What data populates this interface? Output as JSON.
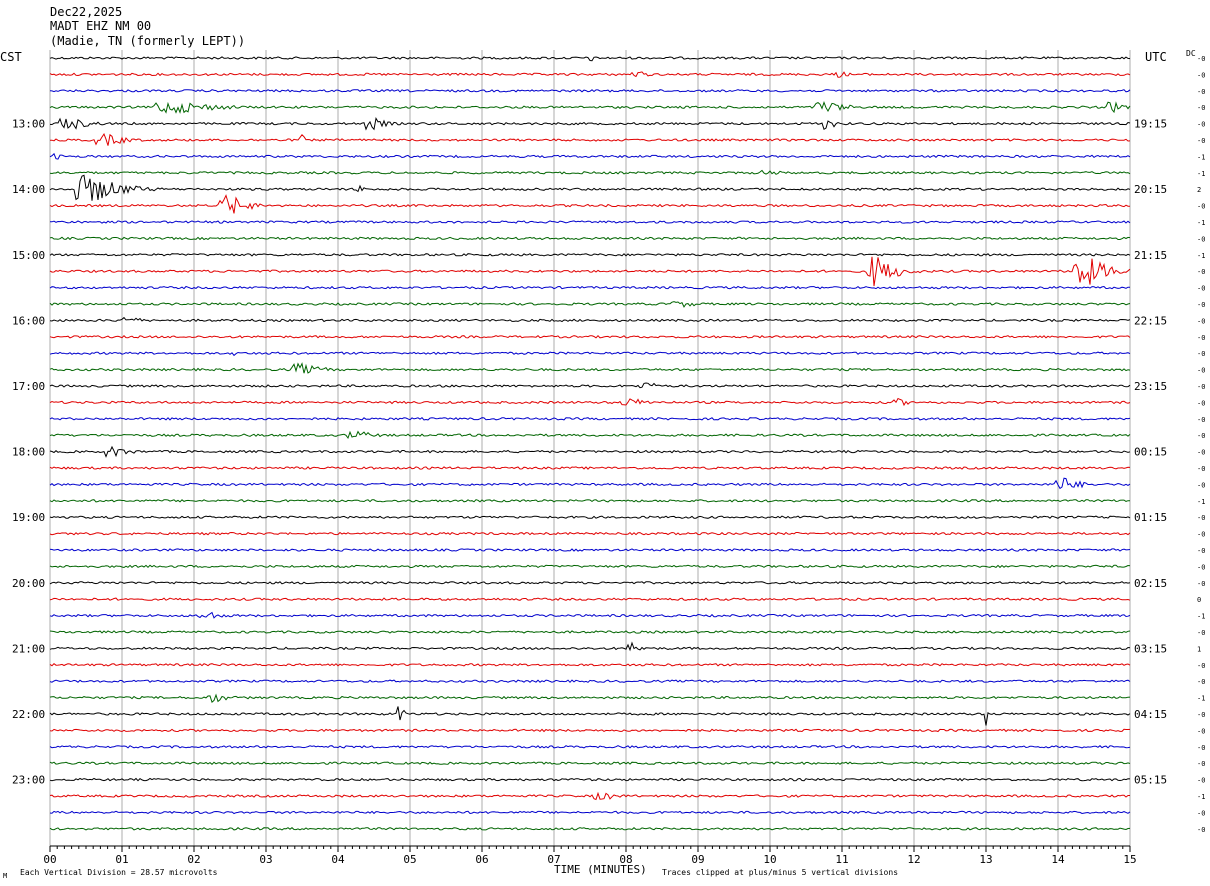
{
  "header": {
    "date": "Dec22,2025",
    "station": "MADT EHZ NM 00",
    "location": "(Madie, TN (formerly LEPT))"
  },
  "left_axis_label": "CST",
  "right_axis_label": "UTC",
  "dc_label": "DC",
  "footer": {
    "marker": "M",
    "scale_note": "Each Vertical Division =   28.57 microvolts",
    "xlabel": "TIME (MINUTES)",
    "clip_note": "Traces clipped at plus/minus 5 vertical divisions"
  },
  "chart_data": {
    "type": "line",
    "title": "",
    "xlabel": "TIME (MINUTES)",
    "xlim": [
      0,
      15
    ],
    "x_ticks": [
      "00",
      "01",
      "02",
      "03",
      "04",
      "05",
      "06",
      "07",
      "08",
      "09",
      "10",
      "11",
      "12",
      "13",
      "14",
      "15"
    ],
    "trace_count": 48,
    "trace_colors": [
      "#000000",
      "#e00000",
      "#0000cc",
      "#006400"
    ],
    "left_time_labels": [
      {
        "row": 4,
        "label": "13:00"
      },
      {
        "row": 8,
        "label": "14:00"
      },
      {
        "row": 12,
        "label": "15:00"
      },
      {
        "row": 16,
        "label": "16:00"
      },
      {
        "row": 20,
        "label": "17:00"
      },
      {
        "row": 24,
        "label": "18:00"
      },
      {
        "row": 28,
        "label": "19:00"
      },
      {
        "row": 32,
        "label": "20:00"
      },
      {
        "row": 36,
        "label": "21:00"
      },
      {
        "row": 40,
        "label": "22:00"
      },
      {
        "row": 44,
        "label": "23:00"
      }
    ],
    "right_time_labels": [
      {
        "row": 4,
        "label": "19:15"
      },
      {
        "row": 8,
        "label": "20:15"
      },
      {
        "row": 12,
        "label": "21:15"
      },
      {
        "row": 16,
        "label": "22:15"
      },
      {
        "row": 20,
        "label": "23:15"
      },
      {
        "row": 24,
        "label": "00:15"
      },
      {
        "row": 28,
        "label": "01:15"
      },
      {
        "row": 32,
        "label": "02:15"
      },
      {
        "row": 36,
        "label": "03:15"
      },
      {
        "row": 40,
        "label": "04:15"
      },
      {
        "row": 44,
        "label": "05:15"
      }
    ],
    "dc_offsets": [
      "-0",
      "-0",
      "-0",
      "-0",
      "-0",
      "-0",
      "-1",
      "-1",
      "2",
      "-0",
      "-1",
      "-0",
      "-1",
      "-0",
      "-0",
      "-0",
      "-0",
      "-0",
      "-0",
      "-0",
      "-0",
      "-0",
      "-0",
      "-0",
      "-0",
      "-0",
      "-0",
      "-1",
      "-0",
      "-0",
      "-0",
      "-0",
      "-0",
      "0",
      "-1",
      "-0",
      "1",
      "-0",
      "-0",
      "-1",
      "-0",
      "-0",
      "-0",
      "-0",
      "-0",
      "-1",
      "-0",
      "-0"
    ],
    "events": [
      {
        "row": 0,
        "minute": 7.5,
        "amp": 10,
        "dur": 0.05
      },
      {
        "row": 1,
        "minute": 8.2,
        "amp": 3,
        "dur": 0.4
      },
      {
        "row": 1,
        "minute": 11.0,
        "amp": 3,
        "dur": 0.3
      },
      {
        "row": 3,
        "minute": 1.8,
        "amp": 6,
        "dur": 1.2
      },
      {
        "row": 3,
        "minute": 10.8,
        "amp": 6,
        "dur": 0.6
      },
      {
        "row": 3,
        "minute": 14.8,
        "amp": 5,
        "dur": 0.4
      },
      {
        "row": 4,
        "minute": 0.3,
        "amp": 6,
        "dur": 0.6
      },
      {
        "row": 4,
        "minute": 4.5,
        "amp": 6,
        "dur": 0.4
      },
      {
        "row": 4,
        "minute": 10.8,
        "amp": 6,
        "dur": 0.3
      },
      {
        "row": 5,
        "minute": 0.8,
        "amp": 6,
        "dur": 0.6
      },
      {
        "row": 5,
        "minute": 3.5,
        "amp": 6,
        "dur": 0.1
      },
      {
        "row": 6,
        "minute": 0.1,
        "amp": 3,
        "dur": 0.2
      },
      {
        "row": 7,
        "minute": 10.0,
        "amp": 3,
        "dur": 0.4
      },
      {
        "row": 8,
        "minute": 0.6,
        "amp": 14,
        "dur": 0.8
      },
      {
        "row": 8,
        "minute": 4.3,
        "amp": 4,
        "dur": 0.2
      },
      {
        "row": 9,
        "minute": 2.5,
        "amp": 11,
        "dur": 0.5
      },
      {
        "row": 13,
        "minute": 11.5,
        "amp": 16,
        "dur": 0.5
      },
      {
        "row": 13,
        "minute": 14.4,
        "amp": 16,
        "dur": 0.6
      },
      {
        "row": 15,
        "minute": 8.8,
        "amp": 3,
        "dur": 0.6
      },
      {
        "row": 16,
        "minute": 1.1,
        "amp": 4,
        "dur": 0.4
      },
      {
        "row": 18,
        "minute": 2.55,
        "amp": 8,
        "dur": 0.05
      },
      {
        "row": 19,
        "minute": 3.5,
        "amp": 6,
        "dur": 0.6
      },
      {
        "row": 20,
        "minute": 8.3,
        "amp": 4,
        "dur": 0.4
      },
      {
        "row": 21,
        "minute": 8.1,
        "amp": 4,
        "dur": 0.6
      },
      {
        "row": 21,
        "minute": 11.8,
        "amp": 4,
        "dur": 0.3
      },
      {
        "row": 23,
        "minute": 4.3,
        "amp": 4,
        "dur": 0.6
      },
      {
        "row": 24,
        "minute": 0.9,
        "amp": 5,
        "dur": 0.5
      },
      {
        "row": 26,
        "minute": 14.1,
        "amp": 7,
        "dur": 0.5
      },
      {
        "row": 34,
        "minute": 2.2,
        "amp": 5,
        "dur": 0.4
      },
      {
        "row": 36,
        "minute": 8.1,
        "amp": 6,
        "dur": 0.3
      },
      {
        "row": 39,
        "minute": 2.3,
        "amp": 5,
        "dur": 0.4
      },
      {
        "row": 40,
        "minute": 4.85,
        "amp": 14,
        "dur": 0.1
      },
      {
        "row": 40,
        "minute": 13.0,
        "amp": 12,
        "dur": 0.05
      },
      {
        "row": 45,
        "minute": 7.7,
        "amp": 4,
        "dur": 0.5
      }
    ]
  }
}
